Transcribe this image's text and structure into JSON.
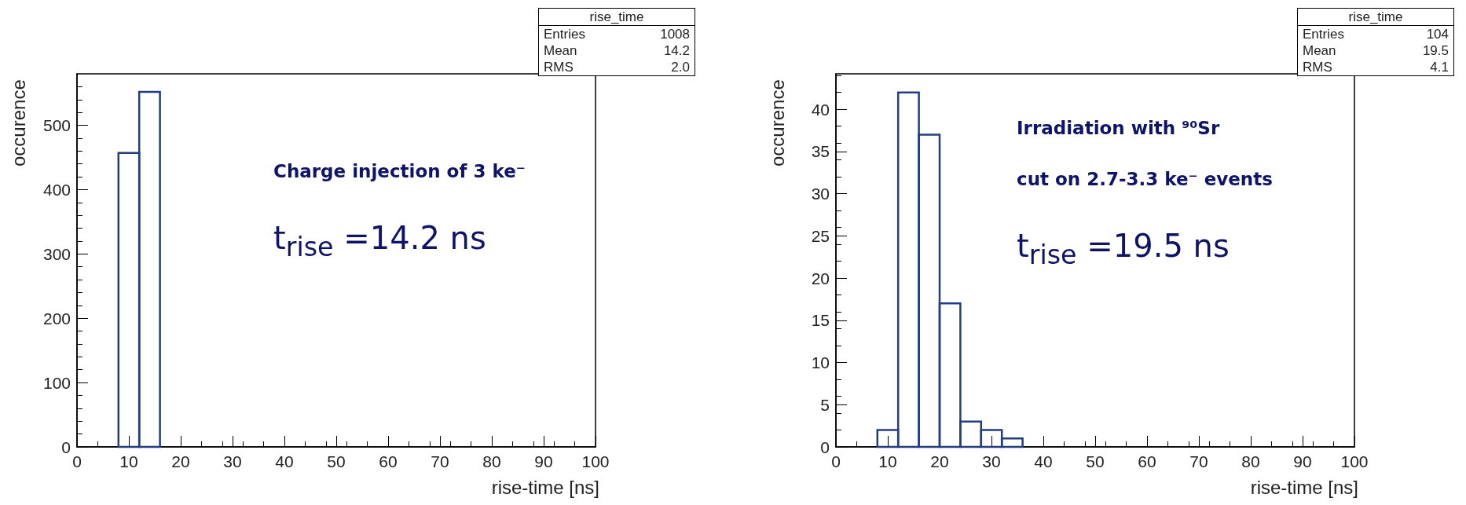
{
  "chart_data": [
    {
      "type": "histogram",
      "xlabel": "rise-time [ns]",
      "ylabel": "occurence",
      "bins": [
        8,
        12,
        16
      ],
      "values": [
        457,
        552
      ],
      "color": "#233d7e",
      "xlim": [
        0,
        100
      ],
      "xticks": [
        0,
        10,
        20,
        30,
        40,
        50,
        60,
        70,
        80,
        90,
        100
      ],
      "ylim": [
        0,
        580
      ],
      "yticks": [
        0,
        100,
        200,
        300,
        400,
        500
      ],
      "grid": false,
      "annotations": [
        "rise_time",
        "Entries",
        "1008",
        "Mean",
        "14.2",
        "RMS",
        "2.0",
        "Charge injection of 3 ke⁻",
        "t$_{rise}$ =14.2 ns"
      ]
    },
    {
      "type": "histogram",
      "xlabel": "rise-time [ns]",
      "ylabel": "occurence",
      "bins": [
        8,
        12,
        16,
        20,
        24,
        28,
        32,
        36
      ],
      "values": [
        2,
        42,
        37,
        17,
        3,
        2,
        1
      ],
      "color": "#233d7e",
      "xlim": [
        0,
        100
      ],
      "xticks": [
        0,
        10,
        20,
        30,
        40,
        50,
        60,
        70,
        80,
        90,
        100
      ],
      "ylim": [
        0,
        44.2
      ],
      "yticks": [
        0,
        5,
        10,
        15,
        20,
        25,
        30,
        35,
        40
      ],
      "grid": false,
      "annotations": [
        "rise_time",
        "Entries",
        "104",
        "Mean",
        "19.5",
        "RMS",
        "4.1",
        "Irradiation with ⁹⁰Sr",
        "cut on 2.7-3.3 ke⁻ events",
        "t$_{rise}$ =19.5 ns"
      ]
    }
  ]
}
